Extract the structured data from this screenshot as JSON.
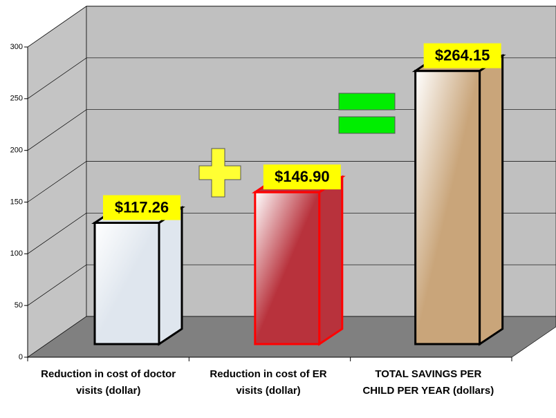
{
  "chart_data": {
    "type": "bar3d",
    "categories": [
      "Reduction in cost of doctor visits (dollar)",
      "Reduction in cost of ER visits (dollar)",
      "TOTAL SAVINGS PER CHILD PER YEAR (dollars)"
    ],
    "values": [
      117.26,
      146.9,
      264.15
    ],
    "value_labels": [
      "$117.26",
      "$146.90",
      "$264.15"
    ],
    "colors": [
      "#dfe6ee",
      "#b8323c",
      "#c9a57a"
    ],
    "outline_colors": [
      "#000000",
      "#ff0000",
      "#000000"
    ],
    "ylim": [
      0,
      300
    ],
    "yticks": [
      0,
      50,
      100,
      150,
      200,
      250,
      300
    ],
    "grid": true
  }
}
